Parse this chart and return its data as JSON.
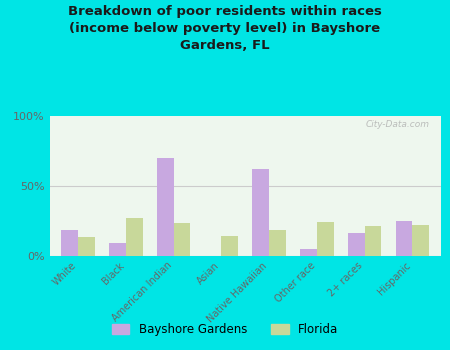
{
  "title": "Breakdown of poor residents within races\n(income below poverty level) in Bayshore\nGardens, FL",
  "categories": [
    "White",
    "Black",
    "American Indian",
    "Asian",
    "Native Hawaiian",
    "Other race",
    "2+ races",
    "Hispanic"
  ],
  "bayshore_values": [
    18,
    9,
    70,
    0,
    62,
    5,
    16,
    25
  ],
  "florida_values": [
    13,
    27,
    23,
    14,
    18,
    24,
    21,
    22
  ],
  "bayshore_color": "#c8a8e0",
  "florida_color": "#c8d89a",
  "bg_outer": "#00e5e5",
  "title_color": "#1a1a1a",
  "axis_label_color": "#666666",
  "ytick_labels": [
    "0%",
    "50%",
    "100%"
  ],
  "ytick_values": [
    0,
    50,
    100
  ],
  "watermark": "City-Data.com",
  "legend_bayshore": "Bayshore Gardens",
  "legend_florida": "Florida"
}
